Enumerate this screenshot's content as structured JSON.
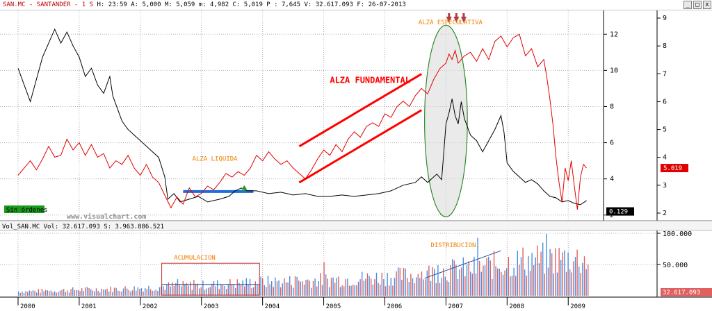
{
  "header": {
    "symbol": "SAN.MC - SANTANDER - 1 S",
    "ohlc": "H: 23:59 A: 5,000 M: 5,059 m: 4,982 C: 5,019 P : 7,645 V: 32.617.093 F: 26-07-2013",
    "controls": [
      "_",
      "□",
      "x"
    ]
  },
  "volume_header": "Vol_SAN.MC Vol: 32.617.093 S: 3.963.886.521",
  "watermark": "www.visualchart.com",
  "order_badge": "Sin órdenes",
  "colors": {
    "price": "#e00000",
    "black_series": "#000000",
    "channel": "#ff0000",
    "liquidity_bar": "#1e6ed8",
    "ellipse": "#2e8b2e",
    "annotation": "#f08000",
    "vol_up": "#4a8fe0",
    "vol_down": "#e06060"
  },
  "chart_data": [
    {
      "type": "line",
      "name": "price-chart",
      "x_range": [
        2000.0,
        2009.35
      ],
      "x_ticks": [
        "2000",
        "2001",
        "2002",
        "2003",
        "2004",
        "2005",
        "2006",
        "2007",
        "2008",
        "2009"
      ],
      "y_left": {
        "range": [
          1.8,
          13.2
        ],
        "ticks": [
          2,
          4,
          6,
          8,
          10,
          12
        ]
      },
      "y_right": {
        "range": [
          1.8,
          9.2
        ],
        "ticks": [
          2,
          3,
          4,
          5,
          6,
          7,
          8,
          9
        ]
      },
      "grid": true,
      "series": [
        {
          "axis": "right",
          "points": [
            [
              2000.0,
              7.2
            ],
            [
              2000.1,
              6.6
            ],
            [
              2000.2,
              6.0
            ],
            [
              2000.3,
              6.8
            ],
            [
              2000.4,
              7.6
            ],
            [
              2000.5,
              8.1
            ],
            [
              2000.6,
              8.6
            ],
            [
              2000.7,
              8.1
            ],
            [
              2000.8,
              8.5
            ],
            [
              2000.9,
              8.0
            ],
            [
              2001.0,
              7.6
            ],
            [
              2001.1,
              6.9
            ],
            [
              2001.2,
              7.2
            ],
            [
              2001.3,
              6.6
            ],
            [
              2001.4,
              6.3
            ],
            [
              2001.5,
              6.9
            ],
            [
              2001.55,
              6.2
            ],
            [
              2001.6,
              5.9
            ],
            [
              2001.7,
              5.3
            ],
            [
              2001.8,
              5.0
            ],
            [
              2001.9,
              4.8
            ],
            [
              2002.0,
              4.6
            ],
            [
              2002.1,
              4.4
            ],
            [
              2002.2,
              4.2
            ],
            [
              2002.3,
              4.0
            ],
            [
              2002.4,
              3.3
            ],
            [
              2002.45,
              2.5
            ],
            [
              2002.55,
              2.7
            ],
            [
              2002.65,
              2.4
            ],
            [
              2002.8,
              2.5
            ],
            [
              2002.95,
              2.6
            ],
            [
              2003.1,
              2.4
            ],
            [
              2003.3,
              2.5
            ],
            [
              2003.45,
              2.6
            ],
            [
              2003.55,
              2.8
            ],
            [
              2003.65,
              2.9
            ],
            [
              2003.75,
              2.8
            ],
            [
              2003.9,
              2.8
            ],
            [
              2004.1,
              2.7
            ],
            [
              2004.3,
              2.75
            ],
            [
              2004.5,
              2.65
            ],
            [
              2004.7,
              2.7
            ],
            [
              2004.9,
              2.6
            ],
            [
              2005.1,
              2.6
            ],
            [
              2005.3,
              2.65
            ],
            [
              2005.5,
              2.6
            ],
            [
              2005.7,
              2.65
            ],
            [
              2005.9,
              2.7
            ],
            [
              2006.1,
              2.8
            ],
            [
              2006.3,
              3.0
            ],
            [
              2006.5,
              3.1
            ],
            [
              2006.6,
              3.3
            ],
            [
              2006.7,
              3.1
            ],
            [
              2006.85,
              3.4
            ],
            [
              2006.93,
              3.2
            ],
            [
              2007.0,
              5.2
            ],
            [
              2007.05,
              5.6
            ],
            [
              2007.1,
              6.1
            ],
            [
              2007.15,
              5.5
            ],
            [
              2007.2,
              5.2
            ],
            [
              2007.25,
              6.0
            ],
            [
              2007.3,
              5.4
            ],
            [
              2007.4,
              4.8
            ],
            [
              2007.5,
              4.6
            ],
            [
              2007.6,
              4.2
            ],
            [
              2007.7,
              4.6
            ],
            [
              2007.8,
              5.0
            ],
            [
              2007.9,
              5.5
            ],
            [
              2007.95,
              4.9
            ],
            [
              2008.0,
              3.8
            ],
            [
              2008.1,
              3.5
            ],
            [
              2008.2,
              3.3
            ],
            [
              2008.3,
              3.1
            ],
            [
              2008.4,
              3.2
            ],
            [
              2008.5,
              3.05
            ],
            [
              2008.6,
              2.8
            ],
            [
              2008.7,
              2.6
            ],
            [
              2008.8,
              2.55
            ],
            [
              2008.9,
              2.4
            ],
            [
              2009.0,
              2.45
            ],
            [
              2009.1,
              2.35
            ],
            [
              2009.2,
              2.3
            ],
            [
              2009.3,
              2.45
            ]
          ]
        },
        {
          "axis": "left",
          "points": [
            [
              2000.0,
              4.2
            ],
            [
              2000.1,
              4.6
            ],
            [
              2000.2,
              5.0
            ],
            [
              2000.3,
              4.5
            ],
            [
              2000.4,
              5.1
            ],
            [
              2000.5,
              5.8
            ],
            [
              2000.6,
              5.2
            ],
            [
              2000.7,
              5.3
            ],
            [
              2000.8,
              6.2
            ],
            [
              2000.9,
              5.6
            ],
            [
              2001.0,
              6.0
            ],
            [
              2001.1,
              5.3
            ],
            [
              2001.2,
              5.9
            ],
            [
              2001.3,
              5.2
            ],
            [
              2001.4,
              5.4
            ],
            [
              2001.5,
              4.6
            ],
            [
              2001.6,
              5.0
            ],
            [
              2001.7,
              4.8
            ],
            [
              2001.8,
              5.3
            ],
            [
              2001.9,
              4.6
            ],
            [
              2002.0,
              4.2
            ],
            [
              2002.1,
              4.8
            ],
            [
              2002.2,
              4.1
            ],
            [
              2002.3,
              3.8
            ],
            [
              2002.4,
              3.1
            ],
            [
              2002.5,
              2.4
            ],
            [
              2002.6,
              3.0
            ],
            [
              2002.7,
              2.6
            ],
            [
              2002.8,
              3.5
            ],
            [
              2002.9,
              3.0
            ],
            [
              2003.0,
              3.2
            ],
            [
              2003.1,
              3.6
            ],
            [
              2003.2,
              3.4
            ],
            [
              2003.3,
              3.8
            ],
            [
              2003.4,
              4.3
            ],
            [
              2003.5,
              4.1
            ],
            [
              2003.6,
              4.4
            ],
            [
              2003.7,
              4.2
            ],
            [
              2003.8,
              4.6
            ],
            [
              2003.9,
              5.3
            ],
            [
              2004.0,
              5.0
            ],
            [
              2004.1,
              5.5
            ],
            [
              2004.2,
              5.1
            ],
            [
              2004.3,
              4.8
            ],
            [
              2004.4,
              5.0
            ],
            [
              2004.5,
              4.6
            ],
            [
              2004.6,
              4.3
            ],
            [
              2004.7,
              4.0
            ],
            [
              2004.8,
              4.5
            ],
            [
              2004.9,
              5.1
            ],
            [
              2005.0,
              5.6
            ],
            [
              2005.1,
              5.3
            ],
            [
              2005.2,
              5.9
            ],
            [
              2005.3,
              5.5
            ],
            [
              2005.4,
              6.2
            ],
            [
              2005.5,
              6.6
            ],
            [
              2005.6,
              6.3
            ],
            [
              2005.7,
              6.9
            ],
            [
              2005.8,
              7.1
            ],
            [
              2005.9,
              6.9
            ],
            [
              2006.0,
              7.6
            ],
            [
              2006.1,
              7.4
            ],
            [
              2006.2,
              8.0
            ],
            [
              2006.3,
              8.3
            ],
            [
              2006.4,
              8.0
            ],
            [
              2006.5,
              8.6
            ],
            [
              2006.6,
              9.0
            ],
            [
              2006.7,
              8.7
            ],
            [
              2006.8,
              9.5
            ],
            [
              2006.9,
              10.1
            ],
            [
              2007.0,
              10.4
            ],
            [
              2007.05,
              10.9
            ],
            [
              2007.1,
              10.6
            ],
            [
              2007.15,
              11.1
            ],
            [
              2007.2,
              10.4
            ],
            [
              2007.3,
              10.8
            ],
            [
              2007.4,
              11.0
            ],
            [
              2007.5,
              10.5
            ],
            [
              2007.6,
              11.2
            ],
            [
              2007.7,
              10.6
            ],
            [
              2007.8,
              11.6
            ],
            [
              2007.9,
              11.9
            ],
            [
              2008.0,
              11.3
            ],
            [
              2008.1,
              11.8
            ],
            [
              2008.2,
              12.0
            ],
            [
              2008.3,
              10.8
            ],
            [
              2008.4,
              11.2
            ],
            [
              2008.5,
              10.2
            ],
            [
              2008.6,
              10.6
            ],
            [
              2008.65,
              9.6
            ],
            [
              2008.7,
              8.4
            ],
            [
              2008.75,
              7.0
            ],
            [
              2008.8,
              5.2
            ],
            [
              2008.85,
              3.8
            ],
            [
              2008.9,
              2.7
            ],
            [
              2008.95,
              4.6
            ],
            [
              2009.0,
              3.9
            ],
            [
              2009.05,
              5.0
            ],
            [
              2009.1,
              3.6
            ],
            [
              2009.15,
              2.3
            ],
            [
              2009.2,
              4.1
            ],
            [
              2009.25,
              4.8
            ],
            [
              2009.3,
              4.6
            ]
          ]
        }
      ],
      "annotations": {
        "alza_liquida": "ALZA LIQUIDA",
        "alza_fundamental": "ALZA FUNDAMENTAL",
        "alza_especulativa": "ALZA ESPECULATIVA",
        "liquidity_bar": {
          "x1": 2002.7,
          "x2": 2003.85,
          "y": 3.3
        },
        "channel_upper": [
          [
            2004.6,
            5.8
          ],
          [
            2006.6,
            9.8
          ]
        ],
        "channel_lower": [
          [
            2004.6,
            3.8
          ],
          [
            2006.6,
            7.8
          ]
        ],
        "ellipse": {
          "x_center": 2007.0,
          "x_half_width": 0.35,
          "y_center": 7.2,
          "y_half_height": 5.3
        },
        "down_arrows_x": [
          2007.05,
          2007.17,
          2007.29
        ],
        "buy_marker": {
          "x": 2003.7,
          "y": 2.9
        }
      },
      "last_value_label": "5.019",
      "lower_value_label": "0.129"
    },
    {
      "type": "bar",
      "name": "volume-chart",
      "x_range": [
        2000.0,
        2009.35
      ],
      "y_range": [
        0,
        100000
      ],
      "y_ticks": [
        "50.000",
        "100.000"
      ],
      "grid": true,
      "volume_profile": [
        [
          2000.0,
          8000
        ],
        [
          2000.5,
          9000
        ],
        [
          2001.0,
          11000
        ],
        [
          2001.5,
          12000
        ],
        [
          2002.0,
          14000
        ],
        [
          2002.5,
          18000
        ],
        [
          2003.0,
          19000
        ],
        [
          2003.5,
          22000
        ],
        [
          2004.0,
          25000
        ],
        [
          2004.5,
          26000
        ],
        [
          2005.0,
          29000
        ],
        [
          2005.5,
          31000
        ],
        [
          2006.0,
          34000
        ],
        [
          2006.5,
          38000
        ],
        [
          2007.0,
          46000
        ],
        [
          2007.5,
          50000
        ],
        [
          2008.0,
          60000
        ],
        [
          2008.5,
          66000
        ],
        [
          2009.0,
          68000
        ],
        [
          2009.3,
          66000
        ]
      ],
      "annotations": {
        "acumulacion": "ACUMULACION",
        "distribucion": "DISTRIBUCION",
        "accumulation_box": {
          "x1": 2002.35,
          "x2": 2003.95,
          "y1": 1000,
          "y2": 52000
        },
        "accumulation_line": {
          "x1": 2002.35,
          "x2": 2003.95,
          "y": 18000
        },
        "distribution_trend": [
          [
            2006.65,
            28000
          ],
          [
            2007.9,
            72000
          ]
        ]
      },
      "last_value_label": "32.617.093"
    }
  ]
}
